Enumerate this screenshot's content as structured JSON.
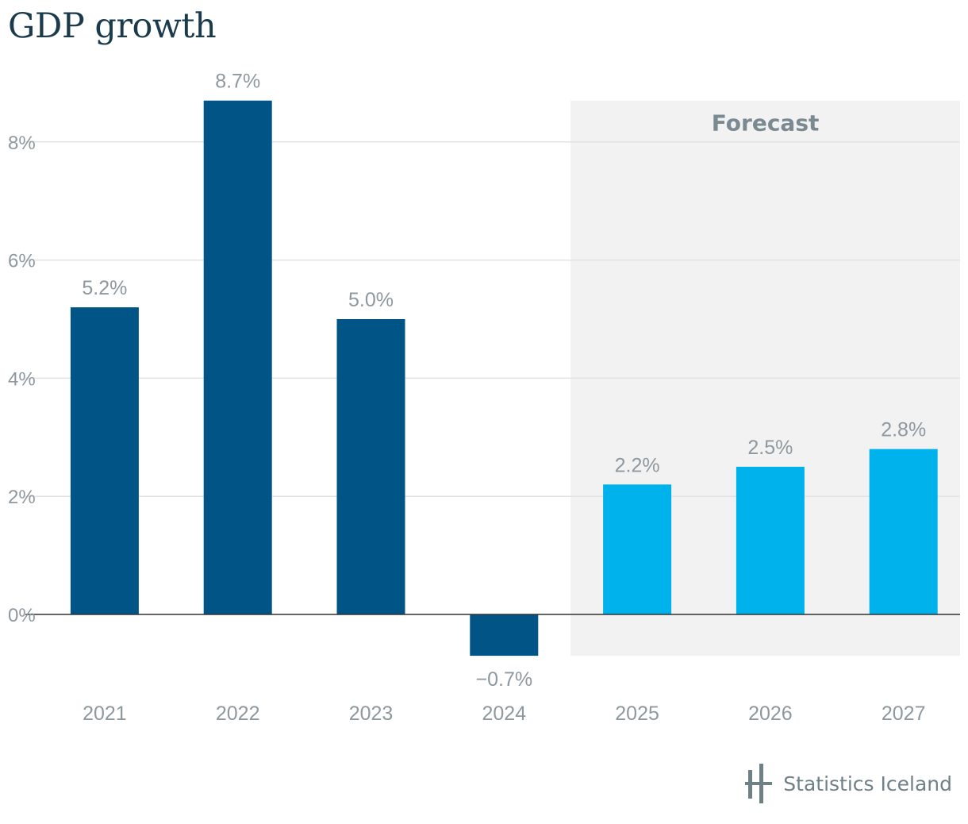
{
  "title": "GDP growth",
  "forecast_label": "Forecast",
  "logo_text": "Statistics Iceland",
  "colors": {
    "actual": "#005486",
    "forecast": "#00b2ec",
    "forecast_bg": "#f2f2f2",
    "grid": "#e3e3e3",
    "zero_line": "#333333",
    "text": "#8d989f"
  },
  "chart_data": {
    "type": "bar",
    "title": "GDP growth",
    "categories": [
      "2021",
      "2022",
      "2023",
      "2024",
      "2025",
      "2026",
      "2027"
    ],
    "values": [
      5.2,
      8.7,
      5.0,
      -0.7,
      2.2,
      2.5,
      2.8
    ],
    "value_labels": [
      "5.2%",
      "8.7%",
      "5.0%",
      "−0.7%",
      "2.2%",
      "2.5%",
      "2.8%"
    ],
    "forecast": [
      false,
      false,
      false,
      false,
      true,
      true,
      true
    ],
    "yticks": [
      0,
      2,
      4,
      6,
      8
    ],
    "ytick_labels": [
      "0%",
      "2%",
      "4%",
      "6%",
      "8%"
    ],
    "ylim": [
      -0.7,
      8.7
    ],
    "grid": true,
    "xlabel": "",
    "ylabel": ""
  }
}
